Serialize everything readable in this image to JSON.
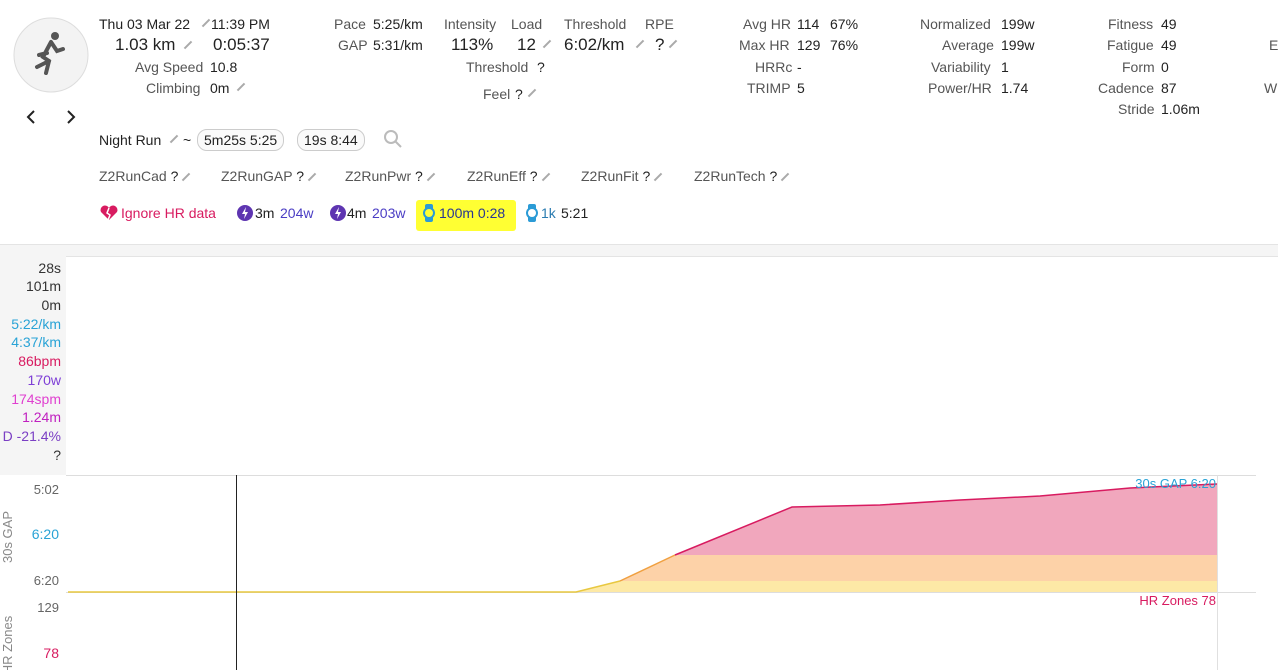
{
  "header": {
    "date": "Thu 03 Mar 22",
    "time": "11:39 PM",
    "distance": "1.03 km",
    "duration": "0:05:37",
    "avg_speed": {
      "label": "Avg Speed",
      "value": "10.8"
    },
    "climbing": {
      "label": "Climbing",
      "value": "0m"
    }
  },
  "stats": {
    "pace": {
      "label": "Pace",
      "value": "5:25/km"
    },
    "gap": {
      "label": "GAP",
      "value": "5:31/km"
    },
    "intensity": {
      "label": "Intensity",
      "value": "113%"
    },
    "load": {
      "label": "Load",
      "value": "12"
    },
    "threshold": {
      "label": "Threshold",
      "value": "6:02/km"
    },
    "rpe": {
      "label": "RPE",
      "value": "?"
    },
    "threshold_hr": {
      "label": "Threshold",
      "value": "?"
    },
    "feel": {
      "label": "Feel",
      "value": "?"
    }
  },
  "heart_rate": {
    "avg_hr": {
      "label": "Avg HR",
      "value": "114",
      "percent": "67%"
    },
    "max_hr": {
      "label": "Max HR",
      "value": "129",
      "percent": "76%"
    },
    "hrrc": {
      "label": "HRRc",
      "value": "-"
    },
    "trimp": {
      "label": "TRIMP",
      "value": "5"
    }
  },
  "power": {
    "normalized": {
      "label": "Normalized",
      "value": "199w"
    },
    "average": {
      "label": "Average",
      "value": "199w"
    },
    "variability": {
      "label": "Variability",
      "value": "1"
    },
    "power_hr": {
      "label": "Power/HR",
      "value": "1.74"
    }
  },
  "training": {
    "fitness": {
      "label": "Fitness",
      "value": "49"
    },
    "fatigue": {
      "label": "Fatigue",
      "value": "49"
    },
    "form": {
      "label": "Form",
      "value": "0"
    },
    "cadence": {
      "label": "Cadence",
      "value": "87"
    },
    "stride": {
      "label": "Stride",
      "value": "1.06m"
    }
  },
  "cut_off": [
    "E",
    "W"
  ],
  "activity": {
    "name": "Night Run",
    "separator": "~",
    "chips": [
      "5m25s 5:25",
      "19s 8:44"
    ]
  },
  "custom_fields": [
    {
      "label": "Z2RunCad",
      "value": "?"
    },
    {
      "label": "Z2RunGAP",
      "value": "?"
    },
    {
      "label": "Z2RunPwr",
      "value": "?"
    },
    {
      "label": "Z2RunEff",
      "value": "?"
    },
    {
      "label": "Z2RunFit",
      "value": "?"
    },
    {
      "label": "Z2RunTech",
      "value": "?"
    }
  ],
  "tags": {
    "ignore_hr": "Ignore HR data",
    "power_efforts": [
      {
        "duration": "3m",
        "value": "204w"
      },
      {
        "duration": "4m",
        "value": "203w"
      }
    ],
    "pace_efforts": [
      {
        "distance": "100m",
        "time": "0:28"
      },
      {
        "distance": "1k",
        "time": "5:21"
      }
    ]
  },
  "legend": [
    "28s",
    "101m",
    "0m",
    "5:22/km",
    "4:37/km",
    "86bpm",
    "170w",
    "174spm",
    "1.24m",
    "D -21.4%",
    "?"
  ],
  "chart": {
    "axis_gap": {
      "title": "30s GAP",
      "ticks": [
        "5:02",
        "6:20",
        "6:20"
      ]
    },
    "axis_hr": {
      "title": "HR Zones",
      "ticks": [
        "129",
        "78"
      ]
    },
    "gap_label": "30s GAP 6:20",
    "hr_label": "HR Zones 78"
  }
}
